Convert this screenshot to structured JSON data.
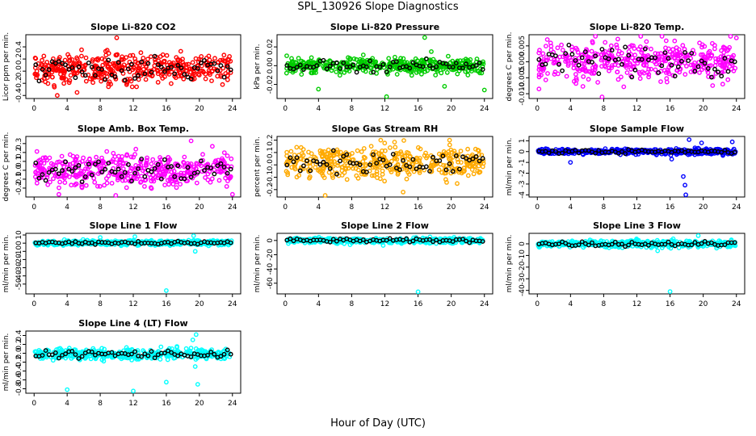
{
  "figure": {
    "title": "SPL_130926  Slope Diagnostics",
    "xlabel": "Hour of Day (UTC)"
  },
  "chart_data": [
    {
      "type": "scatter",
      "title": "Slope Li-820 CO2",
      "ylabel": "Licor ppm per min.",
      "ylim": [
        -0.45,
        0.6
      ],
      "yticks": [
        -0.4,
        -0.2,
        0.0,
        0.2,
        0.4
      ],
      "ytick_labels": [
        "-0.4",
        "-0.2",
        "0.0",
        "0.2",
        "0.4"
      ],
      "xlim": [
        -1,
        25
      ],
      "xticks": [
        0,
        4,
        8,
        12,
        16,
        20,
        24
      ],
      "color": "#ff0000",
      "center": 0.05,
      "spread": 0.12,
      "outliers": [
        {
          "x": 5.2,
          "y": -0.35
        },
        {
          "x": 10.0,
          "y": 0.55
        },
        {
          "x": 2.8,
          "y": -0.4
        },
        {
          "x": 22.8,
          "y": -0.22
        }
      ]
    },
    {
      "type": "scatter",
      "title": "Slope Li-820 Pressure",
      "ylabel": "kPa per min.",
      "ylim": [
        -0.035,
        0.033
      ],
      "yticks": [
        -0.02,
        0.0,
        0.02
      ],
      "ytick_labels": [
        "-0.02",
        "0.00",
        "0.02"
      ],
      "xlim": [
        -1,
        25
      ],
      "xticks": [
        0,
        4,
        8,
        12,
        16,
        20,
        24
      ],
      "color": "#00cc00",
      "center": 0.0,
      "spread": 0.004,
      "outliers": [
        {
          "x": 4.0,
          "y": -0.025
        },
        {
          "x": 16.8,
          "y": 0.03
        },
        {
          "x": 12.2,
          "y": -0.033
        },
        {
          "x": 24.0,
          "y": -0.026
        },
        {
          "x": 17.6,
          "y": 0.015
        },
        {
          "x": 19.2,
          "y": -0.022
        }
      ]
    },
    {
      "type": "scatter",
      "title": "Slope Li-820 Temp.",
      "ylabel": "degrees C per min.",
      "ylim": [
        -0.0115,
        0.0085
      ],
      "yticks": [
        -0.01,
        -0.005,
        0.0,
        0.005
      ],
      "ytick_labels": [
        "-0.010",
        "-0.005",
        "0.000",
        "0.005"
      ],
      "xlim": [
        -1,
        25
      ],
      "xticks": [
        0,
        4,
        8,
        12,
        16,
        20,
        24
      ],
      "color": "#ff00ff",
      "center": 0.0005,
      "spread": 0.0032,
      "outliers": [
        {
          "x": 7.0,
          "y": 0.008
        },
        {
          "x": 7.8,
          "y": -0.0112
        },
        {
          "x": 0.2,
          "y": -0.0085
        },
        {
          "x": 24.0,
          "y": 0.0075
        }
      ]
    },
    {
      "type": "scatter",
      "title": "Slope Amb. Box Temp.",
      "ylabel": "degrees C per min.",
      "ylim": [
        -0.3,
        0.38
      ],
      "yticks": [
        -0.2,
        -0.1,
        0.0,
        0.1,
        0.2,
        0.3
      ],
      "ytick_labels": [
        "-0.2",
        "-0.1",
        "0.0",
        "0.1",
        "0.2",
        "0.3"
      ],
      "xlim": [
        -1,
        25
      ],
      "xticks": [
        0,
        4,
        8,
        12,
        16,
        20,
        24
      ],
      "color": "#ff00ff",
      "center": 0.0,
      "spread": 0.09,
      "outliers": [
        {
          "x": 19.0,
          "y": 0.33
        },
        {
          "x": 24.0,
          "y": -0.27
        },
        {
          "x": 3.0,
          "y": -0.27
        }
      ]
    },
    {
      "type": "scatter",
      "title": "Slope Gas Stream RH",
      "ylabel": "percent per min.",
      "ylim": [
        -0.26,
        0.23
      ],
      "yticks": [
        -0.2,
        -0.1,
        0.0,
        0.1,
        0.2
      ],
      "ytick_labels": [
        "-0.2",
        "-0.1",
        "0.0",
        "0.1",
        "0.2"
      ],
      "xlim": [
        -1,
        25
      ],
      "xticks": [
        0,
        4,
        8,
        12,
        16,
        20,
        24
      ],
      "color": "#ffaa00",
      "center": 0.02,
      "spread": 0.065,
      "outliers": [
        {
          "x": 4.8,
          "y": -0.25
        },
        {
          "x": 19.8,
          "y": 0.2
        },
        {
          "x": 11.5,
          "y": 0.2
        },
        {
          "x": 14.2,
          "y": -0.22
        }
      ]
    },
    {
      "type": "scatter",
      "title": "Slope Sample Flow",
      "ylabel": "ml/min per min.",
      "ylim": [
        -4.2,
        1.4
      ],
      "yticks": [
        -4,
        -3,
        -2,
        -1,
        0,
        1
      ],
      "ytick_labels": [
        "-4",
        "-3",
        "-2",
        "-1",
        "0",
        "1"
      ],
      "xlim": [
        -1,
        25
      ],
      "xticks": [
        0,
        4,
        8,
        12,
        16,
        20,
        24
      ],
      "color": "#0000ff",
      "center": 0.0,
      "spread": 0.12,
      "outliers": [
        {
          "x": 17.8,
          "y": -3.1
        },
        {
          "x": 17.9,
          "y": -4.0
        },
        {
          "x": 17.6,
          "y": -2.3
        },
        {
          "x": 18.3,
          "y": 1.1
        },
        {
          "x": 19.8,
          "y": 0.8
        },
        {
          "x": 23.5,
          "y": 0.9
        },
        {
          "x": 4.0,
          "y": -1.0
        },
        {
          "x": 16.2,
          "y": -0.7
        }
      ]
    },
    {
      "type": "scatter",
      "title": "Slope Line 1 Flow",
      "ylabel": "ml/min per min.",
      "ylim": [
        -62,
        12
      ],
      "yticks": [
        -50,
        -40,
        -30,
        -20,
        -10,
        0,
        10
      ],
      "ytick_labels": [
        "-50",
        "-40",
        "-30",
        "-20",
        "-10",
        "0",
        "10"
      ],
      "xlim": [
        -1,
        25
      ],
      "xticks": [
        0,
        4,
        8,
        12,
        16,
        20,
        24
      ],
      "color": "#00ffff",
      "center": 0.5,
      "spread": 1.5,
      "outliers": [
        {
          "x": 16.0,
          "y": -58
        },
        {
          "x": 19.5,
          "y": -10
        },
        {
          "x": 12.2,
          "y": 8
        },
        {
          "x": 8.0,
          "y": 7
        },
        {
          "x": 19.3,
          "y": 9
        }
      ]
    },
    {
      "type": "scatter",
      "title": "Slope Line 2 Flow",
      "ylabel": "ml/min per min.",
      "ylim": [
        -75,
        10
      ],
      "yticks": [
        -60,
        -40,
        -20,
        0
      ],
      "ytick_labels": [
        "-60",
        "-40",
        "-20",
        "0"
      ],
      "xlim": [
        -1,
        25
      ],
      "xticks": [
        0,
        4,
        8,
        12,
        16,
        20,
        24
      ],
      "color": "#00ffff",
      "center": 0.0,
      "spread": 1.8,
      "outliers": [
        {
          "x": 16.0,
          "y": -72
        },
        {
          "x": 11.8,
          "y": -7
        },
        {
          "x": 7.8,
          "y": -6
        }
      ]
    },
    {
      "type": "scatter",
      "title": "Slope Line 3 Flow",
      "ylabel": "ml/min per min.",
      "ylim": [
        -43,
        9
      ],
      "yticks": [
        -40,
        -30,
        -20,
        -10,
        0
      ],
      "ytick_labels": [
        "-40",
        "-30",
        "-20",
        "-10",
        "0"
      ],
      "xlim": [
        -1,
        25
      ],
      "xticks": [
        0,
        4,
        8,
        12,
        16,
        20,
        24
      ],
      "color": "#00ffff",
      "center": 0.0,
      "spread": 1.5,
      "outliers": [
        {
          "x": 16.0,
          "y": -41
        },
        {
          "x": 19.4,
          "y": 7
        },
        {
          "x": 14.5,
          "y": -6
        }
      ]
    },
    {
      "type": "scatter",
      "title": "Slope Line 4 (LT) Flow",
      "ylabel": "ml/min per min.",
      "ylim": [
        -0.9,
        0.5
      ],
      "yticks": [
        -0.8,
        -0.6,
        -0.4,
        -0.2,
        0.0,
        0.2,
        0.4
      ],
      "ytick_labels": [
        "-0.8",
        "-0.6",
        "-0.4",
        "-0.2",
        "0.0",
        "0.2",
        "0.4"
      ],
      "xlim": [
        -1,
        25
      ],
      "xticks": [
        0,
        4,
        8,
        12,
        16,
        20,
        24
      ],
      "color": "#00ffff",
      "center": -0.02,
      "spread": 0.06,
      "outliers": [
        {
          "x": 4.0,
          "y": -0.82
        },
        {
          "x": 12.0,
          "y": -0.85
        },
        {
          "x": 16.0,
          "y": -0.65
        },
        {
          "x": 19.6,
          "y": 0.42
        },
        {
          "x": 19.5,
          "y": -0.3
        },
        {
          "x": 19.8,
          "y": -0.7
        },
        {
          "x": 19.2,
          "y": 0.3
        }
      ]
    }
  ]
}
